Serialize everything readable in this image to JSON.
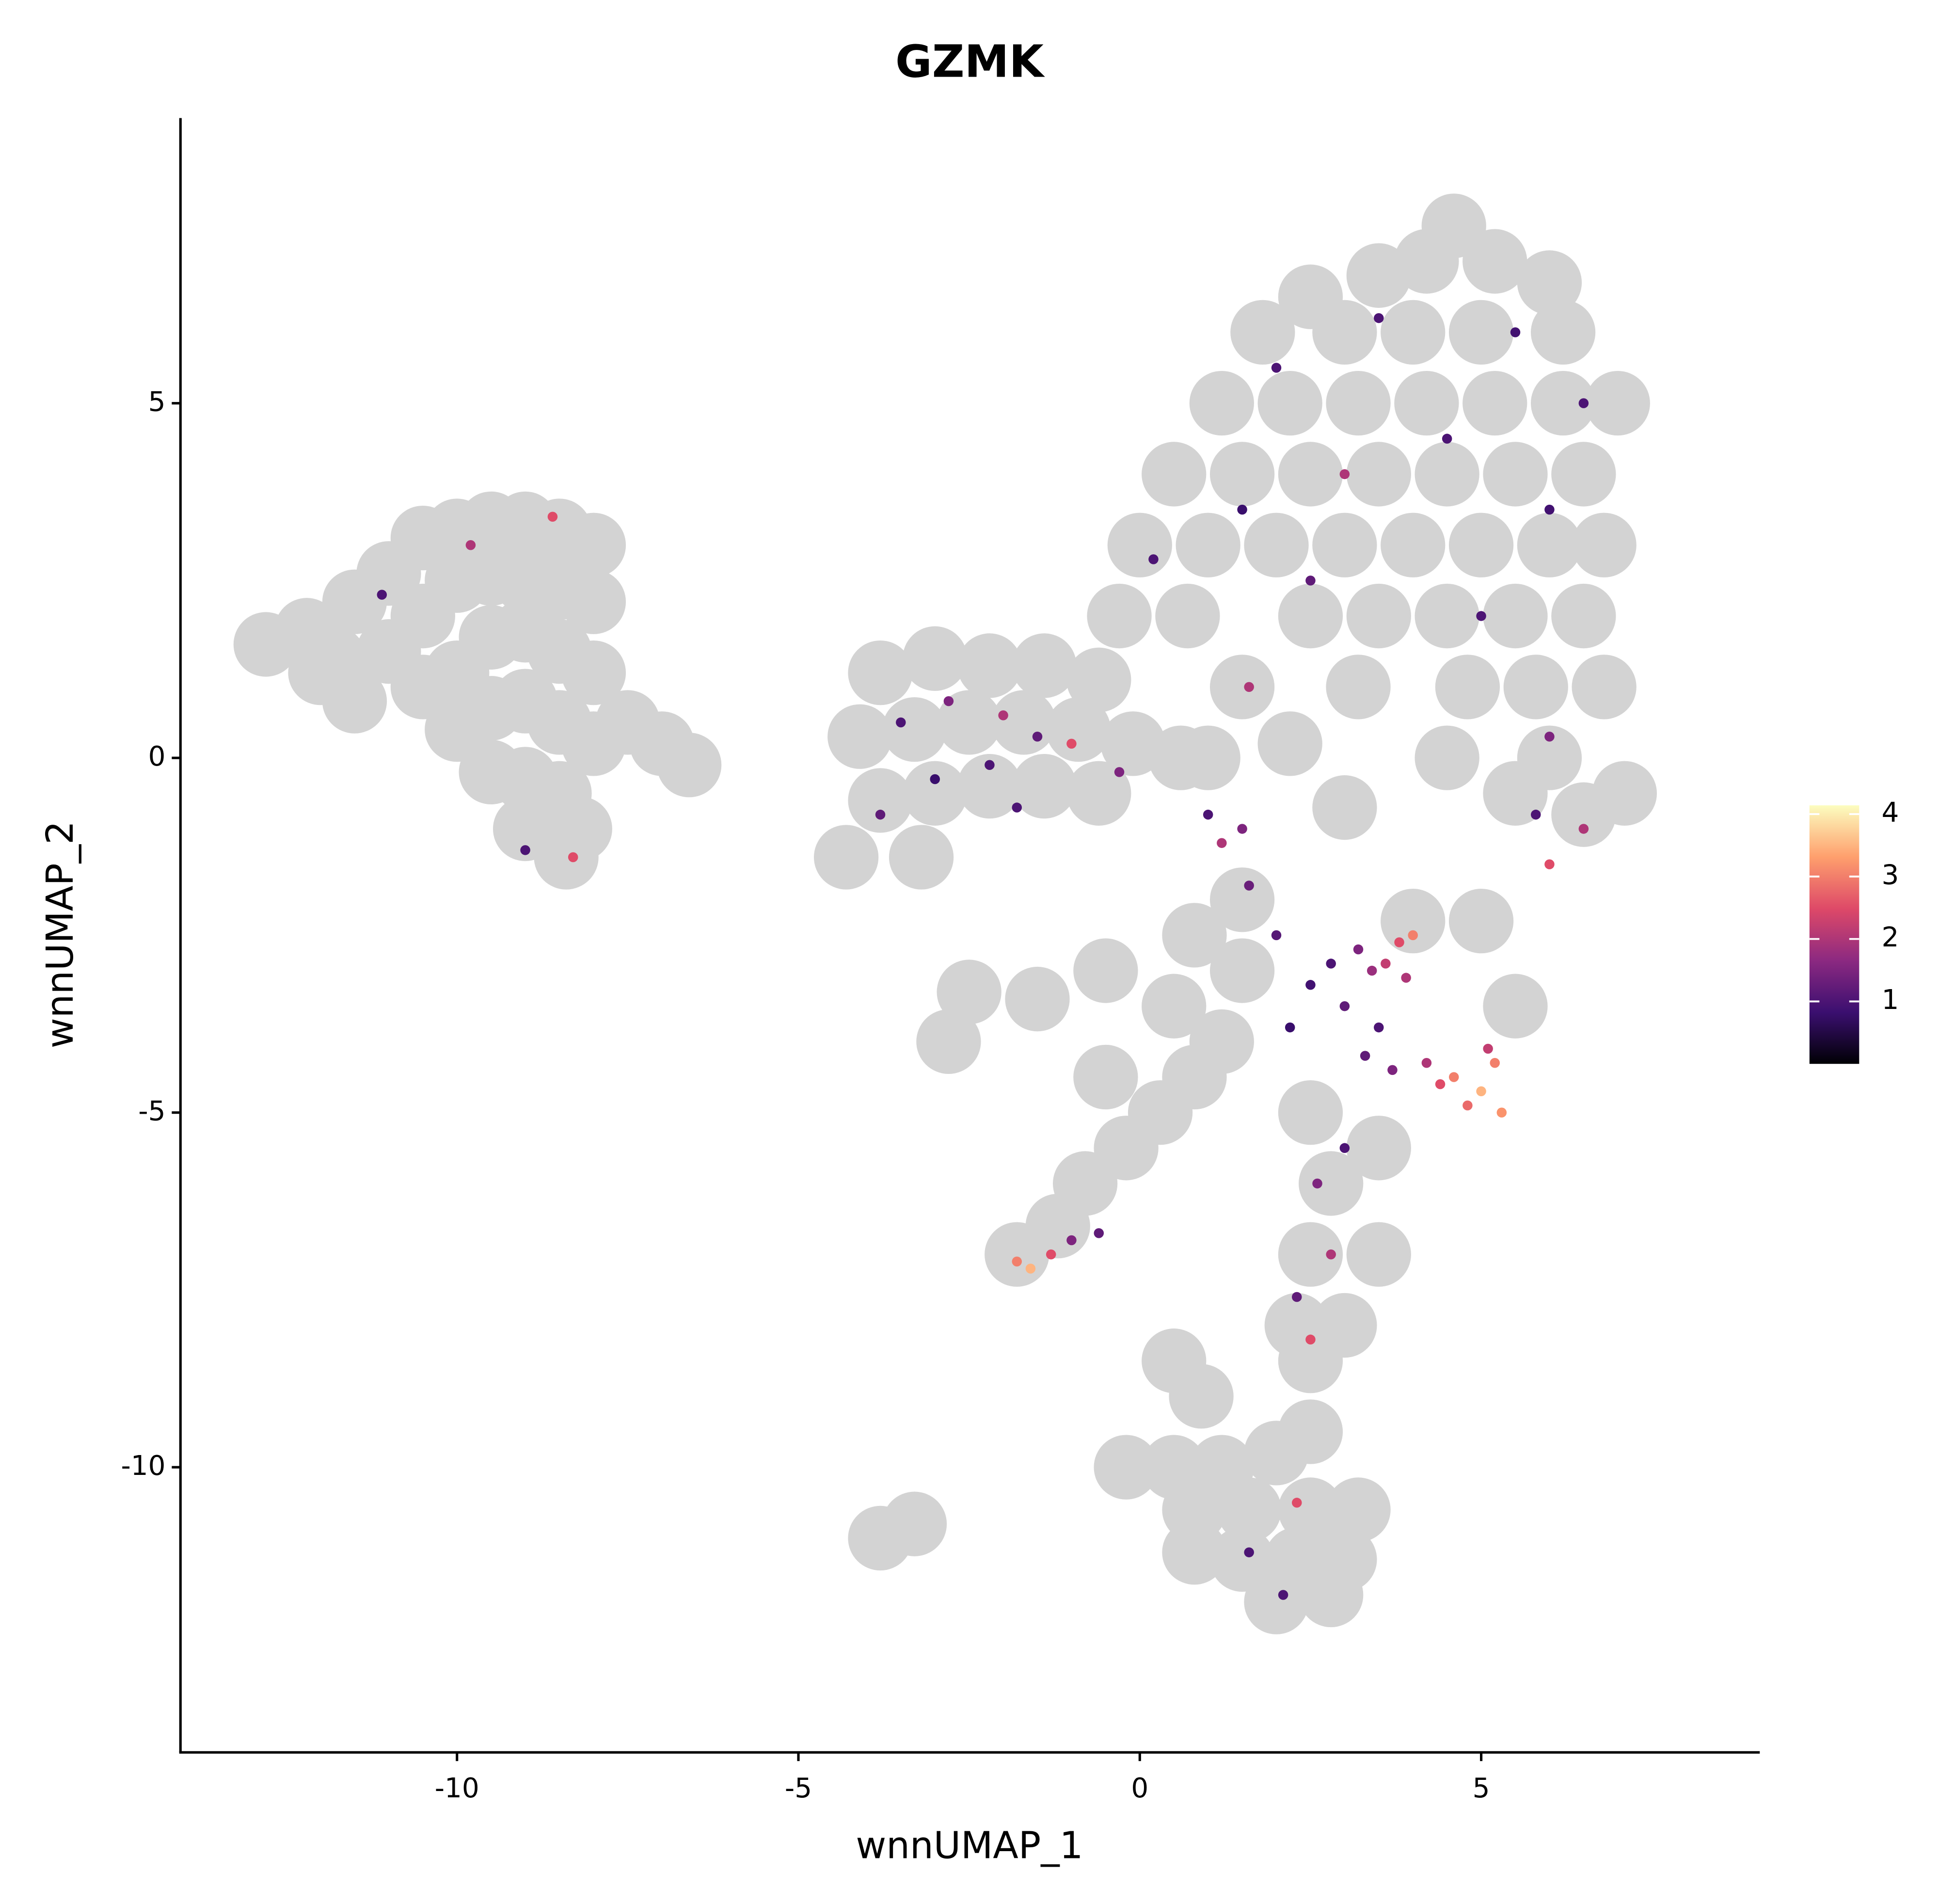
{
  "chart_data": {
    "type": "scatter",
    "title": "GZMK",
    "x_label": "wnnUMAP_1",
    "y_label": "wnnUMAP_2",
    "xlim": [
      -14.05,
      9.08
    ],
    "ylim": [
      -14.02,
      9.02
    ],
    "xticks": [
      -10,
      -5,
      0,
      5
    ],
    "yticks": [
      -10,
      -5,
      0,
      5
    ],
    "background_color": "#d3d3d3",
    "colorscale": [
      "#000004",
      "#3b0f70",
      "#8c2981",
      "#de4968",
      "#fe9f6d",
      "#fcfdbf"
    ],
    "colorbar": {
      "lim": [
        0,
        4.14
      ],
      "ticks": [
        1,
        2,
        3,
        4
      ]
    },
    "series": [
      {
        "x": [
          -12.8,
          -12.2,
          -11.8,
          -11.5,
          -11.0,
          -10.5,
          -10,
          -9.5,
          -9,
          -8.5,
          -8,
          -11,
          -10.5,
          -10,
          -9.5,
          -9,
          -8.5,
          -8,
          -10.5,
          -10,
          -9.5,
          -9,
          -8.5,
          -8,
          -10,
          -9.5,
          -9,
          -8.5,
          -8,
          -9.5,
          -9,
          -8.5,
          -8.2,
          -9,
          -7.5,
          -7,
          -6.6,
          -11.5,
          -12,
          -8.4,
          4.6,
          4.2,
          5.2,
          3.5,
          2.5,
          6,
          1.8,
          3,
          4,
          5,
          6.2,
          1.2,
          2.2,
          3.2,
          4.2,
          5.2,
          6.2,
          7,
          0.5,
          1.5,
          2.5,
          3.5,
          4.5,
          5.5,
          6.5,
          0,
          1,
          2,
          3,
          4,
          5,
          6,
          6.8,
          -0.3,
          0.7,
          2.5,
          3.5,
          4.5,
          5.5,
          6.5,
          1.5,
          3.2,
          4.8,
          5.8,
          6.8,
          1,
          2.2,
          4.5,
          6,
          7.1,
          6.5,
          5.5,
          3,
          -3.8,
          -3,
          -2.2,
          -1.4,
          -0.6,
          -4.1,
          -3.3,
          -2.5,
          -1.7,
          -0.9,
          -0.1,
          0.6,
          -3.8,
          -3,
          -2.2,
          -1.4,
          -0.6,
          -3.2,
          -4.3,
          -1.8,
          -1.2,
          -0.8,
          -0.2,
          0.3,
          0.8,
          1.2,
          0.5,
          1.5,
          0.8,
          1.5,
          -0.5,
          -1.5,
          -2.5,
          -2.8,
          -0.5,
          2.5,
          3.5,
          4,
          5,
          5.5,
          2.8,
          2.5,
          3.5,
          2.3,
          3,
          2.5,
          0.5,
          0.9,
          -0.2,
          0.5,
          1.2,
          2,
          2.5,
          0.8,
          1.6,
          2.5,
          3.2,
          1.5,
          2.3,
          3,
          2,
          2.8,
          0.8,
          -3.8,
          -3.3
        ],
        "y": [
          1.6,
          1.8,
          1.4,
          2.2,
          2.6,
          3.1,
          3.2,
          3.3,
          3.3,
          3.2,
          3.0,
          1.5,
          2,
          2.5,
          2.6,
          2.5,
          2.4,
          2.2,
          1.0,
          1.2,
          1.7,
          1.8,
          1.5,
          1.2,
          0.4,
          0.7,
          0.8,
          0.5,
          0.2,
          -0.2,
          -0.3,
          -0.5,
          -1.0,
          -1.0,
          0.5,
          0.2,
          -0.1,
          0.8,
          1.2,
          -1.4,
          7.5,
          7.0,
          7.0,
          6.8,
          6.5,
          6.7,
          6,
          6,
          6,
          6,
          6,
          5,
          5,
          5,
          5,
          5,
          5,
          5,
          4,
          4,
          4,
          4,
          4,
          4,
          4,
          3,
          3,
          3,
          3,
          3,
          3,
          3,
          3,
          2,
          2,
          2,
          2,
          2,
          2,
          2,
          1,
          1,
          1,
          1,
          1,
          0,
          0.2,
          0,
          0,
          -0.5,
          -0.8,
          -0.5,
          -0.7,
          1.2,
          1.4,
          1.3,
          1.3,
          1.1,
          0.3,
          0.4,
          0.5,
          0.5,
          0.4,
          0.2,
          0,
          -0.6,
          -0.5,
          -0.4,
          -0.4,
          -0.5,
          -1.4,
          -1.4,
          -7,
          -6.6,
          -6,
          -5.5,
          -5,
          -4.5,
          -4,
          -3.5,
          -3,
          -2.5,
          -2,
          -3,
          -3.4,
          -3.3,
          -4,
          -4.5,
          -5,
          -5.5,
          -2.3,
          -2.3,
          -3.5,
          -6,
          -7,
          -7,
          -8,
          -8,
          -8.5,
          -8.5,
          -9,
          -10,
          -10,
          -10,
          -9.8,
          -9.5,
          -10.6,
          -10.6,
          -10.6,
          -10.6,
          -11.3,
          -11.3,
          -11.3,
          -11.9,
          -11.8,
          -11.2,
          -11,
          -10.8
        ]
      },
      {
        "x": [
          4.6,
          5,
          5.2,
          4.8,
          5.3,
          4.4,
          5.1,
          4.2,
          3.7,
          3.3,
          3.8,
          3.6,
          4,
          3.4,
          3.9,
          3.2,
          2.8,
          3,
          2.5,
          2,
          1.6,
          1.2,
          1,
          1.5,
          2.2,
          3.5,
          -1.8,
          -1.6,
          -1.3,
          -1,
          -0.6,
          -3.5,
          -2.8,
          -2,
          -1.5,
          -1,
          -0.3,
          -3,
          -2.2,
          -3.8,
          -1.8,
          2,
          3.5,
          5.5,
          6.5,
          1.5,
          3,
          4.5,
          6,
          0.2,
          2.5,
          5,
          6,
          6.5,
          5.8,
          6,
          1.6,
          2.6,
          2.8,
          2.3,
          2.5,
          3,
          -9.8,
          -11.1,
          -8.6,
          -9,
          -8.3,
          2.3,
          2.1,
          1.6
        ],
        "y": [
          -4.5,
          -4.7,
          -4.3,
          -4.9,
          -5,
          -4.6,
          -4.1,
          -4.3,
          -4.4,
          -4.2,
          -2.6,
          -2.9,
          -2.5,
          -3,
          -3.1,
          -2.7,
          -2.9,
          -3.5,
          -3.2,
          -2.5,
          -1.8,
          -1.2,
          -0.8,
          -1,
          -3.8,
          -3.8,
          -7.1,
          -7.2,
          -7,
          -6.8,
          -6.7,
          0.5,
          0.8,
          0.6,
          0.3,
          0.2,
          -0.2,
          -0.3,
          -0.1,
          -0.8,
          -0.7,
          5.5,
          6.2,
          6,
          5,
          3.5,
          4,
          4.5,
          3.5,
          2.8,
          2.5,
          2,
          0.3,
          -1,
          -0.8,
          -1.5,
          1,
          -6,
          -7,
          -7.6,
          -8.2,
          -5.5,
          3,
          2.3,
          3.4,
          -1.3,
          -1.4,
          -10.5,
          -11.8,
          -11.2
        ],
        "values": [
          3,
          3.5,
          3,
          2.8,
          3.2,
          2.5,
          2.2,
          2,
          1.5,
          1.2,
          2.5,
          2.2,
          3,
          1.8,
          2,
          1.5,
          1,
          1.2,
          0.9,
          1.1,
          1.3,
          2,
          1,
          1.5,
          0.8,
          1,
          3,
          3.5,
          2.5,
          1.5,
          1.2,
          1,
          1.5,
          2,
          1.2,
          2.5,
          1.5,
          0.8,
          1,
          1.2,
          1,
          1,
          1,
          0.9,
          1,
          0.8,
          2,
          1,
          0.9,
          1,
          1.2,
          1,
          1.5,
          2,
          1,
          2.5,
          2,
          1.5,
          2,
          1.2,
          2.5,
          1,
          2,
          1,
          2.5,
          1,
          2.5,
          2.5,
          1,
          1
        ]
      }
    ]
  }
}
